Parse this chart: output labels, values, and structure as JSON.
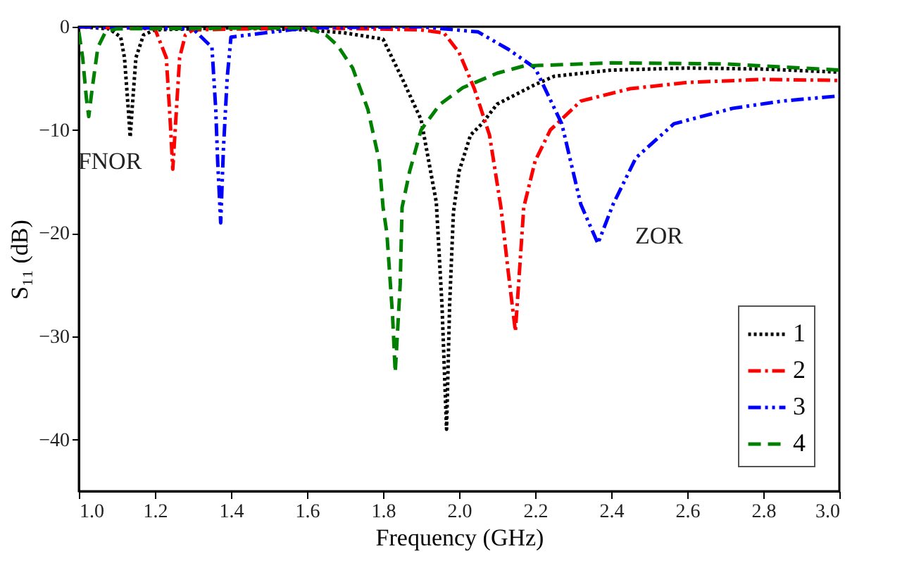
{
  "chart_data": {
    "type": "line",
    "xlabel": "Frequency (GHz)",
    "ylabel": "S₁₁ (dB)",
    "xlim": [
      1.0,
      3.0
    ],
    "xticks": [
      {
        "value": 1.0,
        "label": "1.0"
      },
      {
        "value": 1.2,
        "label": "1.2"
      },
      {
        "value": 1.4,
        "label": "1.4"
      },
      {
        "value": 1.6,
        "label": "1.6"
      },
      {
        "value": 1.8,
        "label": "1.8"
      },
      {
        "value": 2.0,
        "label": "2.0"
      },
      {
        "value": 2.2,
        "label": "2.2"
      },
      {
        "value": 2.4,
        "label": "2.4"
      },
      {
        "value": 2.6,
        "label": "2.6"
      },
      {
        "value": 2.8,
        "label": "2.8"
      },
      {
        "value": 3.0,
        "label": "3.0"
      }
    ],
    "ylim": [
      -45,
      0
    ],
    "yticks": [
      0,
      -10,
      -20,
      -30,
      -40
    ],
    "grid": false,
    "legend": "bottom right",
    "marker": "none",
    "annotations": [
      "FNOR",
      "ZOR"
    ],
    "series": [
      {
        "name": "1",
        "color": "#000000",
        "line_style": "dotted",
        "x": [
          1.0,
          1.08,
          1.11,
          1.12,
          1.13,
          1.135,
          1.14,
          1.15,
          1.17,
          1.2,
          1.4,
          1.6,
          1.7,
          1.8,
          1.85,
          1.9,
          1.94,
          1.955,
          1.967,
          1.975,
          1.985,
          2.0,
          2.03,
          2.06,
          2.1,
          2.2,
          2.25,
          2.4,
          2.6,
          2.8,
          3.0
        ],
        "values": [
          0,
          -0.2,
          -1,
          -3,
          -8,
          -10.7,
          -8,
          -3,
          -0.8,
          -0.3,
          -0.1,
          -0.3,
          -0.6,
          -1.2,
          -5,
          -9,
          -17,
          -27,
          -39,
          -27,
          -18,
          -14,
          -10.5,
          -9.4,
          -7.5,
          -5.6,
          -4.8,
          -4.2,
          -4,
          -4.1,
          -4.4
        ]
      },
      {
        "name": "2",
        "color": "#ff0000",
        "line_style": "dashdot",
        "x": [
          1.0,
          1.2,
          1.23,
          1.24,
          1.247,
          1.255,
          1.265,
          1.28,
          1.3,
          1.6,
          1.9,
          1.96,
          2.0,
          2.04,
          2.08,
          2.11,
          2.13,
          2.148,
          2.16,
          2.17,
          2.2,
          2.24,
          2.32,
          2.45,
          2.6,
          2.8,
          3.0
        ],
        "values": [
          0,
          -0.2,
          -3,
          -9,
          -13.8,
          -9,
          -3,
          -0.8,
          -0.3,
          -0.1,
          -0.3,
          -0.6,
          -2.5,
          -6,
          -10.5,
          -17.5,
          -24,
          -29.5,
          -23,
          -17.5,
          -13,
          -10,
          -7.2,
          -6,
          -5.4,
          -5.1,
          -5.2
        ]
      },
      {
        "name": "3",
        "color": "#0000ff",
        "line_style": "dashdotdot",
        "x": [
          1.0,
          1.3,
          1.35,
          1.36,
          1.365,
          1.373,
          1.38,
          1.39,
          1.4,
          1.6,
          1.9,
          2.05,
          2.13,
          2.2,
          2.27,
          2.32,
          2.365,
          2.405,
          2.465,
          2.565,
          2.72,
          2.85,
          3.0
        ],
        "values": [
          0,
          -0.2,
          -2,
          -8,
          -13,
          -19,
          -12,
          -5,
          -1,
          -0.1,
          0,
          -0.5,
          -2.2,
          -4,
          -9.4,
          -17.2,
          -21,
          -17.2,
          -12.7,
          -9.4,
          -7.9,
          -7.2,
          -6.7
        ]
      },
      {
        "name": "4",
        "color": "#008000",
        "line_style": "dashed",
        "x": [
          1.0,
          1.01,
          1.02,
          1.026,
          1.035,
          1.05,
          1.07,
          1.1,
          1.6,
          1.65,
          1.68,
          1.72,
          1.76,
          1.79,
          1.8,
          1.81,
          1.825,
          1.832,
          1.845,
          1.85,
          1.87,
          1.9,
          1.95,
          2.01,
          2.1,
          2.17,
          2.4,
          2.7,
          3.0
        ],
        "values": [
          -0.5,
          -3,
          -7,
          -8.7,
          -6,
          -2,
          -0.5,
          -0.2,
          -0.1,
          -0.8,
          -1.8,
          -4,
          -8,
          -13,
          -17.5,
          -20,
          -28,
          -33.5,
          -25,
          -17.5,
          -14,
          -10,
          -7.5,
          -5.9,
          -4.5,
          -3.8,
          -3.5,
          -3.6,
          -4.2
        ]
      }
    ]
  }
}
